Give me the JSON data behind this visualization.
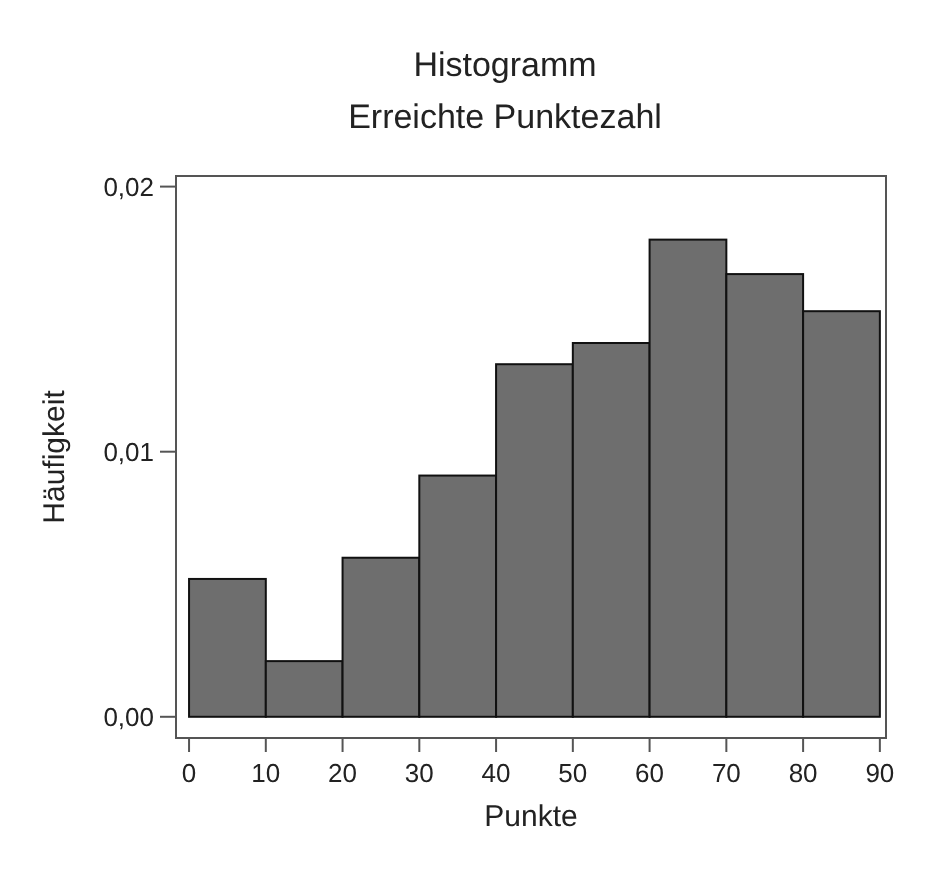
{
  "chart_data": {
    "type": "histogram",
    "title": "Histogramm",
    "subtitle": "Erreichte Punktezahl",
    "xlabel": "Punkte",
    "ylabel": "Häufigkeit",
    "bins": [
      0,
      10,
      20,
      30,
      40,
      50,
      60,
      70,
      80,
      90
    ],
    "values": [
      0.0052,
      0.0021,
      0.006,
      0.0091,
      0.0133,
      0.0141,
      0.018,
      0.0167,
      0.0153
    ],
    "color": "#6e6e6e",
    "xlim": [
      -1.7,
      90.8
    ],
    "xticks": [
      0,
      10,
      20,
      30,
      40,
      50,
      60,
      70,
      80,
      90
    ],
    "ylim": [
      -0.0008,
      0.0204
    ],
    "yticks": [
      {
        "value": 0,
        "label": "0,00"
      },
      {
        "value": 0.01,
        "label": "0,01"
      },
      {
        "value": 0.02,
        "label": "0,02"
      }
    ],
    "grid": false
  }
}
